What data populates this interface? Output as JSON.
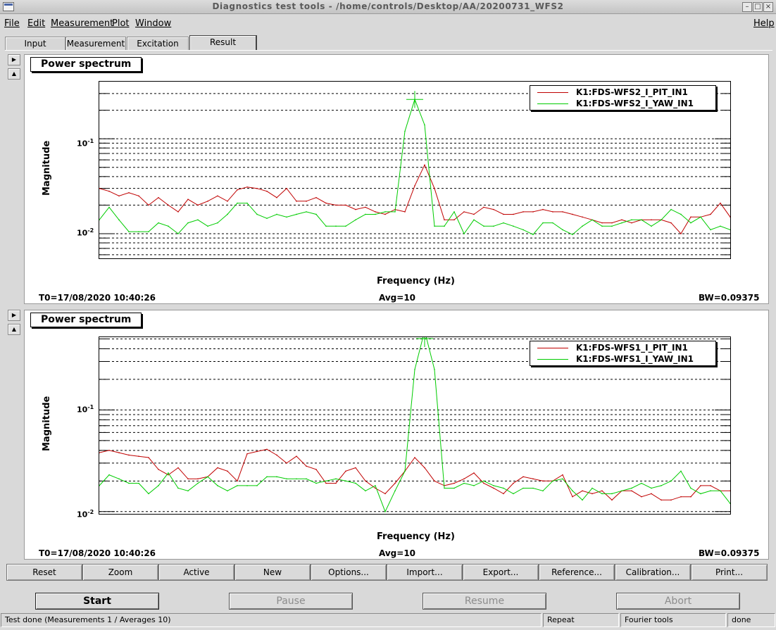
{
  "window": {
    "title": "Diagnostics test tools - /home/controls/Desktop/AA/20200731_WFS2",
    "controls": [
      "–",
      "□",
      "×"
    ]
  },
  "menu": {
    "file": "File",
    "edit": "Edit",
    "measurement": "Measurement",
    "plot": "Plot",
    "window": "Window",
    "help": "Help"
  },
  "tabs": [
    "Input",
    "Measurement",
    "Excitation",
    "Result"
  ],
  "active_tab": "Result",
  "panels": [
    {
      "title": "Power spectrum",
      "ylabel": "Magnitude",
      "xlabel": "Frequency (Hz)",
      "t0": "T0=17/08/2020 10:40:26",
      "avg": "Avg=10",
      "bw": "BW=0.09375",
      "ytick_base": "10",
      "ytick_exp_top": "-1",
      "ytick_exp_bottom": "-2",
      "legend": [
        {
          "name": "K1:FDS-WFS2_I_PIT_IN1",
          "color": "#c00000"
        },
        {
          "name": "K1:FDS-WFS2_I_YAW_IN1",
          "color": "#00cc00"
        }
      ]
    },
    {
      "title": "Power spectrum",
      "ylabel": "Magnitude",
      "xlabel": "Frequency (Hz)",
      "t0": "T0=17/08/2020 10:40:26",
      "avg": "Avg=10",
      "bw": "BW=0.09375",
      "ytick_base": "10",
      "ytick_exp_top": "-1",
      "ytick_exp_bottom": "-2",
      "legend": [
        {
          "name": "K1:FDS-WFS1_I_PIT_IN1",
          "color": "#c00000"
        },
        {
          "name": "K1:FDS-WFS1_I_YAW_IN1",
          "color": "#00cc00"
        }
      ]
    }
  ],
  "chart_data": [
    {
      "type": "line",
      "title": "Power spectrum",
      "xlabel": "Frequency (Hz)",
      "ylabel": "Magnitude",
      "yscale": "log",
      "ylim": [
        0.0055,
        0.4
      ],
      "grid": true,
      "legend_position": "top-right",
      "point_count": 65,
      "series": [
        {
          "name": "K1:FDS-WFS2_I_PIT_IN1",
          "color": "#c00000",
          "values": [
            0.03,
            0.028,
            0.025,
            0.027,
            0.025,
            0.02,
            0.024,
            0.02,
            0.017,
            0.023,
            0.02,
            0.022,
            0.025,
            0.022,
            0.029,
            0.031,
            0.03,
            0.028,
            0.024,
            0.03,
            0.022,
            0.022,
            0.024,
            0.021,
            0.02,
            0.02,
            0.018,
            0.019,
            0.017,
            0.016,
            0.018,
            0.017,
            0.032,
            0.053,
            0.03,
            0.014,
            0.014,
            0.017,
            0.016,
            0.019,
            0.018,
            0.016,
            0.016,
            0.017,
            0.017,
            0.018,
            0.017,
            0.017,
            0.016,
            0.015,
            0.014,
            0.013,
            0.013,
            0.014,
            0.013,
            0.014,
            0.014,
            0.014,
            0.013,
            0.01,
            0.015,
            0.015,
            0.016,
            0.021,
            0.015
          ]
        },
        {
          "name": "K1:FDS-WFS2_I_YAW_IN1",
          "color": "#00cc00",
          "values": [
            0.014,
            0.019,
            0.014,
            0.0105,
            0.0105,
            0.0105,
            0.013,
            0.012,
            0.01,
            0.013,
            0.014,
            0.012,
            0.013,
            0.016,
            0.021,
            0.021,
            0.016,
            0.0145,
            0.016,
            0.015,
            0.016,
            0.017,
            0.016,
            0.012,
            0.012,
            0.012,
            0.014,
            0.016,
            0.016,
            0.017,
            0.017,
            0.12,
            0.26,
            0.14,
            0.012,
            0.012,
            0.017,
            0.01,
            0.014,
            0.012,
            0.012,
            0.013,
            0.012,
            0.011,
            0.0098,
            0.013,
            0.013,
            0.011,
            0.0098,
            0.012,
            0.014,
            0.012,
            0.012,
            0.013,
            0.014,
            0.014,
            0.012,
            0.014,
            0.018,
            0.016,
            0.013,
            0.015,
            0.011,
            0.012,
            0.011
          ]
        }
      ]
    },
    {
      "type": "line",
      "title": "Power spectrum",
      "xlabel": "Frequency (Hz)",
      "ylabel": "Magnitude",
      "yscale": "log",
      "ylim": [
        0.0095,
        0.52
      ],
      "grid": true,
      "legend_position": "top-right",
      "point_count": 65,
      "series": [
        {
          "name": "K1:FDS-WFS1_I_PIT_IN1",
          "color": "#c00000",
          "values": [
            0.038,
            0.04,
            0.038,
            0.036,
            0.035,
            0.034,
            0.026,
            0.023,
            0.027,
            0.021,
            0.021,
            0.022,
            0.027,
            0.025,
            0.02,
            0.037,
            0.039,
            0.041,
            0.036,
            0.03,
            0.035,
            0.028,
            0.026,
            0.019,
            0.019,
            0.025,
            0.027,
            0.02,
            0.017,
            0.015,
            0.019,
            0.025,
            0.034,
            0.027,
            0.02,
            0.018,
            0.019,
            0.021,
            0.024,
            0.019,
            0.017,
            0.015,
            0.019,
            0.022,
            0.021,
            0.02,
            0.02,
            0.023,
            0.014,
            0.016,
            0.015,
            0.016,
            0.013,
            0.016,
            0.016,
            0.014,
            0.015,
            0.013,
            0.013,
            0.014,
            0.014,
            0.018,
            0.018,
            0.016,
            0.016
          ]
        },
        {
          "name": "K1:FDS-WFS1_I_YAW_IN1",
          "color": "#00cc00",
          "values": [
            0.018,
            0.023,
            0.021,
            0.019,
            0.019,
            0.015,
            0.018,
            0.024,
            0.017,
            0.016,
            0.019,
            0.022,
            0.018,
            0.016,
            0.018,
            0.018,
            0.018,
            0.022,
            0.022,
            0.021,
            0.021,
            0.021,
            0.019,
            0.02,
            0.021,
            0.02,
            0.019,
            0.016,
            0.018,
            0.01,
            0.016,
            0.025,
            0.25,
            0.6,
            0.25,
            0.017,
            0.017,
            0.019,
            0.018,
            0.02,
            0.018,
            0.017,
            0.015,
            0.017,
            0.017,
            0.016,
            0.02,
            0.021,
            0.016,
            0.013,
            0.017,
            0.015,
            0.015,
            0.016,
            0.017,
            0.019,
            0.017,
            0.018,
            0.02,
            0.025,
            0.017,
            0.015,
            0.016,
            0.016,
            0.012
          ]
        }
      ]
    }
  ],
  "toolbar": [
    "Reset",
    "Zoom",
    "Active",
    "New",
    "Options...",
    "Import...",
    "Export...",
    "Reference...",
    "Calibration...",
    "Print..."
  ],
  "actions": {
    "start": "Start",
    "pause": "Pause",
    "resume": "Resume",
    "abort": "Abort"
  },
  "status": {
    "message": "Test done (Measurements 1 / Averages 10)",
    "mode": "Repeat",
    "tool": "Fourier tools",
    "state": "done"
  }
}
